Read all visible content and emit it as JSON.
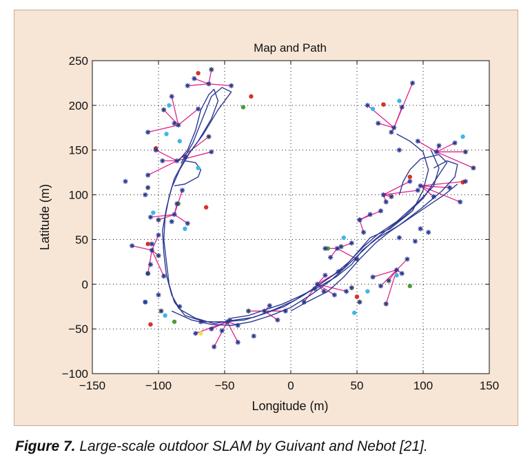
{
  "caption": {
    "figure_number": "Figure 7.",
    "text": " Large-scale outdoor SLAM by Guivant and Nebot [21]."
  },
  "colors": {
    "panel_background": "#f7e6d6",
    "plot_background": "#ffffff",
    "path": "#2b3990",
    "observation_rays": "#e0218a",
    "landmark_marker": "#2b3990",
    "landmark_highlight_yellow": "#f2e24a",
    "landmark_highlight_cyan": "#3fb6e8",
    "landmark_highlight_red": "#d8312a",
    "landmark_highlight_green": "#4f9a3a"
  },
  "chart_data": {
    "type": "scatter",
    "title": "Map and Path",
    "xlabel": "Longitude (m)",
    "ylabel": "Latitude (m)",
    "xlim": [
      -150,
      150
    ],
    "ylim": [
      -100,
      250
    ],
    "xticks": [
      -150,
      -100,
      -50,
      0,
      50,
      100,
      150
    ],
    "yticks": [
      -100,
      -50,
      0,
      50,
      100,
      150,
      200,
      250
    ],
    "xtick_labels": [
      "−150",
      "−100",
      "−50",
      "0",
      "50",
      "100",
      "150"
    ],
    "ytick_labels": [
      "−100",
      "−50",
      "0",
      "50",
      "100",
      "150",
      "200",
      "250"
    ],
    "grid": "dotted",
    "paths": [
      [
        [
          -85,
          138
        ],
        [
          -78,
          150
        ],
        [
          -72,
          172
        ],
        [
          -68,
          195
        ],
        [
          -62,
          212
        ],
        [
          -58,
          218
        ],
        [
          -55,
          205
        ],
        [
          -60,
          185
        ],
        [
          -70,
          160
        ],
        [
          -80,
          140
        ],
        [
          -88,
          118
        ],
        [
          -92,
          98
        ],
        [
          -95,
          75
        ],
        [
          -96,
          50
        ],
        [
          -94,
          25
        ],
        [
          -92,
          0
        ],
        [
          -88,
          -20
        ],
        [
          -80,
          -35
        ],
        [
          -65,
          -42
        ],
        [
          -50,
          -42
        ],
        [
          -35,
          -40
        ],
        [
          -20,
          -33
        ],
        [
          -5,
          -25
        ],
        [
          10,
          -12
        ],
        [
          25,
          3
        ],
        [
          40,
          18
        ],
        [
          50,
          35
        ],
        [
          60,
          52
        ],
        [
          75,
          62
        ],
        [
          92,
          82
        ],
        [
          100,
          105
        ],
        [
          104,
          128
        ],
        [
          100,
          148
        ],
        [
          90,
          160
        ],
        [
          80,
          168
        ]
      ],
      [
        [
          -83,
          135
        ],
        [
          -74,
          158
        ],
        [
          -66,
          188
        ],
        [
          -60,
          210
        ],
        [
          -52,
          220
        ],
        [
          -45,
          215
        ],
        [
          -55,
          195
        ],
        [
          -66,
          168
        ],
        [
          -76,
          148
        ],
        [
          -84,
          128
        ],
        [
          -90,
          108
        ],
        [
          -94,
          85
        ],
        [
          -97,
          60
        ],
        [
          -96,
          35
        ],
        [
          -94,
          10
        ],
        [
          -90,
          -12
        ],
        [
          -84,
          -28
        ],
        [
          -72,
          -38
        ],
        [
          -58,
          -44
        ],
        [
          -42,
          -40
        ],
        [
          -28,
          -37
        ],
        [
          -12,
          -28
        ],
        [
          3,
          -18
        ],
        [
          18,
          -4
        ],
        [
          32,
          10
        ],
        [
          44,
          25
        ],
        [
          55,
          42
        ],
        [
          66,
          56
        ],
        [
          80,
          70
        ],
        [
          95,
          90
        ],
        [
          108,
          110
        ],
        [
          112,
          130
        ],
        [
          106,
          150
        ]
      ],
      [
        [
          -88,
          110
        ],
        [
          -80,
          112
        ],
        [
          -70,
          120
        ],
        [
          -68,
          128
        ],
        [
          -72,
          136
        ],
        [
          -80,
          138
        ]
      ],
      [
        [
          -90,
          -30
        ],
        [
          -75,
          -40
        ],
        [
          -60,
          -45
        ],
        [
          -45,
          -46
        ],
        [
          -30,
          -42
        ],
        [
          -15,
          -35
        ],
        [
          0,
          -26
        ],
        [
          15,
          -12
        ],
        [
          30,
          4
        ],
        [
          42,
          20
        ],
        [
          52,
          34
        ],
        [
          62,
          48
        ],
        [
          72,
          60
        ],
        [
          86,
          76
        ],
        [
          100,
          96
        ],
        [
          110,
          118
        ],
        [
          118,
          136
        ],
        [
          112,
          145
        ],
        [
          98,
          140
        ],
        [
          90,
          128
        ],
        [
          85,
          115
        ],
        [
          82,
          100
        ]
      ],
      [
        [
          -45,
          -38
        ],
        [
          -32,
          -35
        ],
        [
          -18,
          -28
        ],
        [
          -6,
          -22
        ],
        [
          6,
          -14
        ],
        [
          20,
          -4
        ],
        [
          34,
          8
        ],
        [
          46,
          22
        ],
        [
          54,
          38
        ],
        [
          66,
          52
        ],
        [
          82,
          66
        ],
        [
          98,
          84
        ],
        [
          114,
          104
        ],
        [
          124,
          120
        ],
        [
          126,
          134
        ],
        [
          118,
          138
        ],
        [
          108,
          130
        ]
      ],
      [
        [
          0,
          -30
        ],
        [
          12,
          -20
        ],
        [
          28,
          -8
        ],
        [
          40,
          8
        ],
        [
          52,
          28
        ],
        [
          64,
          46
        ],
        [
          74,
          58
        ],
        [
          86,
          70
        ],
        [
          100,
          84
        ],
        [
          116,
          100
        ],
        [
          126,
          112
        ]
      ]
    ],
    "landmarks": [
      [
        -73,
        230
      ],
      [
        -60,
        240
      ],
      [
        -45,
        222
      ],
      [
        -78,
        222
      ],
      [
        -90,
        210
      ],
      [
        -96,
        195
      ],
      [
        -70,
        196
      ],
      [
        -88,
        180
      ],
      [
        -108,
        170
      ],
      [
        -102,
        150
      ],
      [
        -97,
        138
      ],
      [
        -80,
        142
      ],
      [
        -60,
        148
      ],
      [
        -62,
        165
      ],
      [
        -108,
        122
      ],
      [
        -108,
        108
      ],
      [
        -125,
        115
      ],
      [
        -110,
        100
      ],
      [
        -82,
        105
      ],
      [
        -86,
        90
      ],
      [
        -106,
        75
      ],
      [
        -100,
        72
      ],
      [
        -90,
        70
      ],
      [
        -78,
        68
      ],
      [
        -100,
        55
      ],
      [
        -105,
        45
      ],
      [
        -120,
        43
      ],
      [
        -100,
        32
      ],
      [
        -106,
        22
      ],
      [
        -108,
        12
      ],
      [
        -96,
        9
      ],
      [
        -100,
        -12
      ],
      [
        -110,
        -20
      ],
      [
        -98,
        -30
      ],
      [
        -84,
        -25
      ],
      [
        -68,
        -42
      ],
      [
        -60,
        -50
      ],
      [
        -72,
        -55
      ],
      [
        -52,
        -52
      ],
      [
        -46,
        -40
      ],
      [
        -40,
        -46
      ],
      [
        -28,
        -58
      ],
      [
        -40,
        -65
      ],
      [
        -58,
        -70
      ],
      [
        -32,
        -30
      ],
      [
        -16,
        -24
      ],
      [
        -10,
        -40
      ],
      [
        -4,
        -30
      ],
      [
        10,
        -20
      ],
      [
        18,
        -5
      ],
      [
        25,
        -8
      ],
      [
        33,
        -12
      ],
      [
        42,
        -8
      ],
      [
        26,
        10
      ],
      [
        36,
        14
      ],
      [
        30,
        30
      ],
      [
        26,
        40
      ],
      [
        38,
        42
      ],
      [
        46,
        46
      ],
      [
        50,
        28
      ],
      [
        55,
        58
      ],
      [
        52,
        72
      ],
      [
        60,
        78
      ],
      [
        68,
        82
      ],
      [
        72,
        92
      ],
      [
        76,
        98
      ],
      [
        90,
        115
      ],
      [
        96,
        105
      ],
      [
        108,
        98
      ],
      [
        120,
        108
      ],
      [
        128,
        92
      ],
      [
        132,
        115
      ],
      [
        138,
        130
      ],
      [
        132,
        148
      ],
      [
        112,
        155
      ],
      [
        96,
        160
      ],
      [
        82,
        150
      ],
      [
        76,
        170
      ],
      [
        66,
        180
      ],
      [
        58,
        200
      ],
      [
        84,
        198
      ],
      [
        92,
        225
      ],
      [
        124,
        158
      ],
      [
        82,
        52
      ],
      [
        94,
        48
      ],
      [
        98,
        62
      ],
      [
        104,
        58
      ],
      [
        88,
        28
      ],
      [
        84,
        12
      ],
      [
        74,
        4
      ],
      [
        68,
        -2
      ],
      [
        62,
        8
      ],
      [
        46,
        -4
      ],
      [
        52,
        -20
      ],
      [
        72,
        -22
      ]
    ],
    "sensor_stations": [
      [
        -62,
        224
      ],
      [
        -85,
        178
      ],
      [
        -86,
        138
      ],
      [
        -88,
        78
      ],
      [
        -105,
        38
      ],
      [
        -48,
        -42
      ],
      [
        -20,
        -30
      ],
      [
        20,
        0
      ],
      [
        35,
        40
      ],
      [
        52,
        72
      ],
      [
        70,
        100
      ],
      [
        98,
        110
      ],
      [
        110,
        148
      ],
      [
        78,
        175
      ],
      [
        80,
        16
      ]
    ],
    "observation_rays": [
      [
        -62,
        224,
        -73,
        230
      ],
      [
        -62,
        224,
        -60,
        240
      ],
      [
        -62,
        224,
        -45,
        222
      ],
      [
        -62,
        224,
        -78,
        222
      ],
      [
        -85,
        178,
        -90,
        210
      ],
      [
        -85,
        178,
        -96,
        195
      ],
      [
        -85,
        178,
        -70,
        196
      ],
      [
        -85,
        178,
        -108,
        170
      ],
      [
        -86,
        138,
        -102,
        150
      ],
      [
        -86,
        138,
        -97,
        138
      ],
      [
        -86,
        138,
        -60,
        148
      ],
      [
        -86,
        138,
        -62,
        165
      ],
      [
        -86,
        138,
        -108,
        122
      ],
      [
        -88,
        78,
        -82,
        105
      ],
      [
        -88,
        78,
        -86,
        90
      ],
      [
        -88,
        78,
        -106,
        75
      ],
      [
        -88,
        78,
        -78,
        68
      ],
      [
        -88,
        78,
        -100,
        72
      ],
      [
        -105,
        38,
        -100,
        55
      ],
      [
        -105,
        38,
        -120,
        43
      ],
      [
        -105,
        38,
        -100,
        32
      ],
      [
        -105,
        38,
        -108,
        12
      ],
      [
        -105,
        38,
        -96,
        9
      ],
      [
        -48,
        -42,
        -68,
        -42
      ],
      [
        -48,
        -42,
        -60,
        -50
      ],
      [
        -48,
        -42,
        -72,
        -55
      ],
      [
        -48,
        -42,
        -40,
        -46
      ],
      [
        -48,
        -42,
        -40,
        -65
      ],
      [
        -48,
        -42,
        -58,
        -70
      ],
      [
        -20,
        -30,
        -32,
        -30
      ],
      [
        -20,
        -30,
        -16,
        -24
      ],
      [
        -20,
        -30,
        -10,
        -40
      ],
      [
        -20,
        -30,
        -4,
        -30
      ],
      [
        20,
        0,
        10,
        -20
      ],
      [
        20,
        0,
        25,
        -8
      ],
      [
        20,
        0,
        33,
        -12
      ],
      [
        20,
        0,
        42,
        -8
      ],
      [
        20,
        0,
        26,
        10
      ],
      [
        20,
        0,
        36,
        14
      ],
      [
        35,
        40,
        30,
        30
      ],
      [
        35,
        40,
        26,
        40
      ],
      [
        35,
        40,
        38,
        42
      ],
      [
        35,
        40,
        46,
        46
      ],
      [
        35,
        40,
        50,
        28
      ],
      [
        52,
        72,
        55,
        58
      ],
      [
        52,
        72,
        60,
        78
      ],
      [
        52,
        72,
        68,
        82
      ],
      [
        70,
        100,
        72,
        92
      ],
      [
        70,
        100,
        76,
        98
      ],
      [
        70,
        100,
        90,
        115
      ],
      [
        70,
        100,
        96,
        105
      ],
      [
        98,
        110,
        108,
        98
      ],
      [
        98,
        110,
        120,
        108
      ],
      [
        98,
        110,
        128,
        92
      ],
      [
        98,
        110,
        132,
        115
      ],
      [
        110,
        148,
        138,
        130
      ],
      [
        110,
        148,
        132,
        148
      ],
      [
        110,
        148,
        112,
        155
      ],
      [
        110,
        148,
        96,
        160
      ],
      [
        110,
        148,
        124,
        158
      ],
      [
        78,
        175,
        76,
        170
      ],
      [
        78,
        175,
        66,
        180
      ],
      [
        78,
        175,
        58,
        200
      ],
      [
        78,
        175,
        84,
        198
      ],
      [
        78,
        175,
        92,
        225
      ],
      [
        80,
        16,
        88,
        28
      ],
      [
        80,
        16,
        84,
        12
      ],
      [
        80,
        16,
        74,
        4
      ],
      [
        80,
        16,
        68,
        -2
      ],
      [
        80,
        16,
        62,
        8
      ],
      [
        80,
        16,
        72,
        -22
      ]
    ],
    "highlight_points": [
      {
        "color": "#f2e24a",
        "points": [
          [
            -60,
            240
          ],
          [
            -96,
            195
          ],
          [
            -62,
            165
          ],
          [
            -108,
            108
          ],
          [
            -100,
            72
          ],
          [
            -100,
            32
          ],
          [
            -98,
            -30
          ],
          [
            -68,
            -55
          ],
          [
            -32,
            -30
          ],
          [
            46,
            -4
          ],
          [
            52,
            -20
          ],
          [
            72,
            -22
          ],
          [
            132,
            148
          ],
          [
            138,
            130
          ],
          [
            76,
            98
          ],
          [
            38,
            42
          ],
          [
            74,
            4
          ]
        ]
      },
      {
        "color": "#3fb6e8",
        "points": [
          [
            -92,
            200
          ],
          [
            -94,
            168
          ],
          [
            -84,
            160
          ],
          [
            -70,
            130
          ],
          [
            -104,
            80
          ],
          [
            -80,
            62
          ],
          [
            -110,
            -20
          ],
          [
            -95,
            -35
          ],
          [
            40,
            52
          ],
          [
            58,
            -8
          ],
          [
            48,
            -32
          ],
          [
            82,
            205
          ],
          [
            130,
            165
          ],
          [
            62,
            196
          ],
          [
            80,
            10
          ]
        ]
      },
      {
        "color": "#d8312a",
        "points": [
          [
            -30,
            210
          ],
          [
            -70,
            236
          ],
          [
            -102,
            152
          ],
          [
            -106,
            -45
          ],
          [
            -64,
            86
          ],
          [
            70,
            201
          ],
          [
            50,
            -14
          ],
          [
            130,
            114
          ],
          [
            90,
            120
          ],
          [
            -108,
            45
          ]
        ]
      },
      {
        "color": "#4f9a3a",
        "points": [
          [
            -36,
            198
          ],
          [
            -85,
            90
          ],
          [
            -88,
            -42
          ],
          [
            28,
            40
          ],
          [
            90,
            -2
          ],
          [
            -108,
            12
          ]
        ]
      }
    ]
  }
}
